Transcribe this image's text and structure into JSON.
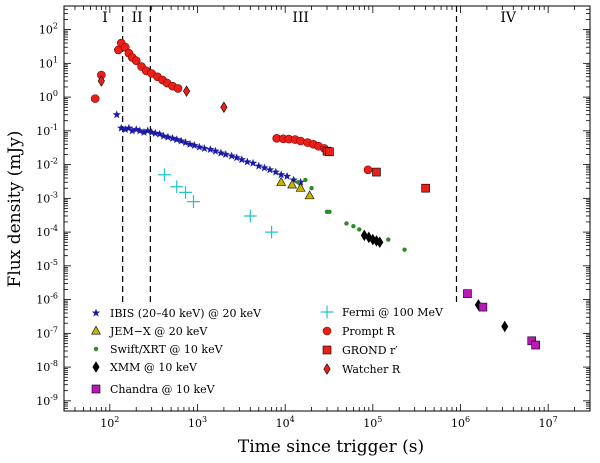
{
  "chart_data": {
    "type": "scatter",
    "xscale": "log",
    "yscale": "log",
    "xlabel": "Time since trigger (s)",
    "ylabel": "Flux density (mJy)",
    "xlim": [
      30,
      30000000
    ],
    "ylim": [
      5e-10,
      500
    ],
    "x_ticks": [
      {
        "value": 100,
        "base": "10",
        "exp": "2"
      },
      {
        "value": 1000,
        "base": "10",
        "exp": "3"
      },
      {
        "value": 10000,
        "base": "10",
        "exp": "4"
      },
      {
        "value": 100000,
        "base": "10",
        "exp": "5"
      },
      {
        "value": 1000000,
        "base": "10",
        "exp": "6"
      },
      {
        "value": 10000000,
        "base": "10",
        "exp": "7"
      }
    ],
    "y_ticks": [
      {
        "value": 100,
        "base": "10",
        "exp": "2"
      },
      {
        "value": 10,
        "base": "10",
        "exp": "1"
      },
      {
        "value": 1,
        "base": "10",
        "exp": "0"
      },
      {
        "value": 0.1,
        "base": "10",
        "exp": "-1"
      },
      {
        "value": 0.01,
        "base": "10",
        "exp": "-2"
      },
      {
        "value": 0.001,
        "base": "10",
        "exp": "-3"
      },
      {
        "value": 0.0001,
        "base": "10",
        "exp": "-4"
      },
      {
        "value": 1e-05,
        "base": "10",
        "exp": "-5"
      },
      {
        "value": 1e-06,
        "base": "10",
        "exp": "-6"
      },
      {
        "value": 1e-07,
        "base": "10",
        "exp": "-7"
      },
      {
        "value": 1e-08,
        "base": "10",
        "exp": "-8"
      },
      {
        "value": 1e-09,
        "base": "10",
        "exp": "-9"
      }
    ],
    "regions": [
      {
        "label": "I",
        "x": 88
      },
      {
        "label": "II",
        "x": 205
      },
      {
        "label": "III",
        "x": 15000
      },
      {
        "label": "IV",
        "x": 3500000
      }
    ],
    "region_boundaries": [
      140,
      290,
      900000
    ],
    "series": [
      {
        "name": "IBIS (20–40 keV) @ 20 keV",
        "marker": "star",
        "color": "#1a1aa6",
        "points": [
          {
            "x": 120,
            "y": 0.3
          },
          {
            "x": 135,
            "y": 0.12
          },
          {
            "x": 150,
            "y": 0.11
          },
          {
            "x": 165,
            "y": 0.12
          },
          {
            "x": 180,
            "y": 0.1
          },
          {
            "x": 200,
            "y": 0.11
          },
          {
            "x": 220,
            "y": 0.1
          },
          {
            "x": 245,
            "y": 0.09
          },
          {
            "x": 270,
            "y": 0.1
          },
          {
            "x": 300,
            "y": 0.09
          },
          {
            "x": 330,
            "y": 0.085
          },
          {
            "x": 370,
            "y": 0.08
          },
          {
            "x": 410,
            "y": 0.07
          },
          {
            "x": 460,
            "y": 0.065
          },
          {
            "x": 520,
            "y": 0.06
          },
          {
            "x": 580,
            "y": 0.055
          },
          {
            "x": 650,
            "y": 0.05
          },
          {
            "x": 730,
            "y": 0.045
          },
          {
            "x": 820,
            "y": 0.04
          },
          {
            "x": 920,
            "y": 0.037
          },
          {
            "x": 1050,
            "y": 0.033
          },
          {
            "x": 1200,
            "y": 0.03
          },
          {
            "x": 1400,
            "y": 0.028
          },
          {
            "x": 1600,
            "y": 0.025
          },
          {
            "x": 1850,
            "y": 0.022
          },
          {
            "x": 2100,
            "y": 0.02
          },
          {
            "x": 2450,
            "y": 0.018
          },
          {
            "x": 2800,
            "y": 0.016
          },
          {
            "x": 3200,
            "y": 0.014
          },
          {
            "x": 3700,
            "y": 0.012
          },
          {
            "x": 4300,
            "y": 0.011
          },
          {
            "x": 5000,
            "y": 0.009
          },
          {
            "x": 5800,
            "y": 0.008
          },
          {
            "x": 6700,
            "y": 0.007
          },
          {
            "x": 7800,
            "y": 0.006
          },
          {
            "x": 9000,
            "y": 0.005
          },
          {
            "x": 10500,
            "y": 0.0045
          },
          {
            "x": 12500,
            "y": 0.0035
          },
          {
            "x": 15000,
            "y": 0.003
          }
        ]
      },
      {
        "name": "JEM−X @ 20 keV",
        "marker": "triangle",
        "color": "#c8b400",
        "points": [
          {
            "x": 9000,
            "y": 0.003
          },
          {
            "x": 12000,
            "y": 0.0025
          },
          {
            "x": 15000,
            "y": 0.002
          },
          {
            "x": 19000,
            "y": 0.0012
          }
        ]
      },
      {
        "name": "Swift/XRT @ 10 keV",
        "marker": "dot",
        "color": "#2e8b22",
        "points": [
          {
            "x": 14000,
            "y": 0.003
          },
          {
            "x": 17000,
            "y": 0.0035
          },
          {
            "x": 20000,
            "y": 0.002
          },
          {
            "x": 30000,
            "y": 0.0004
          },
          {
            "x": 32000,
            "y": 0.0004
          },
          {
            "x": 50000,
            "y": 0.00018
          },
          {
            "x": 60000,
            "y": 0.00015
          },
          {
            "x": 70000,
            "y": 0.00012
          },
          {
            "x": 120000,
            "y": 5e-05
          },
          {
            "x": 150000,
            "y": 6e-05
          },
          {
            "x": 230000,
            "y": 3e-05
          }
        ]
      },
      {
        "name": "XMM @ 10 keV",
        "marker": "diamond",
        "color": "#000000",
        "points": [
          {
            "x": 80000,
            "y": 8e-05
          },
          {
            "x": 90000,
            "y": 7e-05
          },
          {
            "x": 100000,
            "y": 6e-05
          },
          {
            "x": 110000,
            "y": 5.5e-05
          },
          {
            "x": 120000,
            "y": 5e-05
          },
          {
            "x": 1600000,
            "y": 7e-07
          },
          {
            "x": 3200000,
            "y": 1.6e-07
          }
        ]
      },
      {
        "name": "Chandra @ 10 keV",
        "marker": "square",
        "color": "#b71ab7",
        "points": [
          {
            "x": 1200000,
            "y": 1.5e-06
          },
          {
            "x": 1800000,
            "y": 6e-07
          },
          {
            "x": 6500000,
            "y": 6e-08
          },
          {
            "x": 7200000,
            "y": 4.5e-08
          }
        ]
      },
      {
        "name": "Fermi @ 100 MeV",
        "marker": "plus",
        "color": "#22c4c4",
        "points": [
          {
            "x": 420,
            "y": 0.005
          },
          {
            "x": 580,
            "y": 0.0022
          },
          {
            "x": 730,
            "y": 0.0015
          },
          {
            "x": 900,
            "y": 0.0008
          },
          {
            "x": 4000,
            "y": 0.0003
          },
          {
            "x": 7000,
            "y": 0.0001
          }
        ]
      },
      {
        "name": "Prompt R",
        "marker": "circle",
        "color": "#e8201a",
        "points": [
          {
            "x": 68,
            "y": 0.9
          },
          {
            "x": 80,
            "y": 4.5
          },
          {
            "x": 125,
            "y": 25
          },
          {
            "x": 135,
            "y": 40
          },
          {
            "x": 150,
            "y": 30
          },
          {
            "x": 165,
            "y": 20
          },
          {
            "x": 180,
            "y": 15
          },
          {
            "x": 200,
            "y": 12
          },
          {
            "x": 230,
            "y": 8
          },
          {
            "x": 260,
            "y": 6
          },
          {
            "x": 300,
            "y": 5
          },
          {
            "x": 350,
            "y": 4
          },
          {
            "x": 400,
            "y": 3.2
          },
          {
            "x": 450,
            "y": 2.6
          },
          {
            "x": 520,
            "y": 2.1
          },
          {
            "x": 600,
            "y": 1.8
          },
          {
            "x": 8000,
            "y": 0.06
          },
          {
            "x": 9500,
            "y": 0.058
          },
          {
            "x": 11000,
            "y": 0.057
          },
          {
            "x": 13000,
            "y": 0.055
          },
          {
            "x": 15000,
            "y": 0.05
          },
          {
            "x": 18000,
            "y": 0.045
          },
          {
            "x": 21000,
            "y": 0.04
          },
          {
            "x": 24000,
            "y": 0.035
          },
          {
            "x": 28000,
            "y": 0.03
          },
          {
            "x": 88000,
            "y": 0.007
          }
        ]
      },
      {
        "name": "GROND r′",
        "marker": "square",
        "color": "#e8201a",
        "points": [
          {
            "x": 30000,
            "y": 0.025
          },
          {
            "x": 32000,
            "y": 0.024
          },
          {
            "x": 110000,
            "y": 0.006
          },
          {
            "x": 400000,
            "y": 0.002
          }
        ]
      },
      {
        "name": "Watcher R",
        "marker": "diamond",
        "color": "#e8201a",
        "points": [
          {
            "x": 80,
            "y": 3
          },
          {
            "x": 750,
            "y": 1.5
          },
          {
            "x": 2000,
            "y": 0.5
          }
        ]
      }
    ]
  },
  "legend": {
    "items": [
      {
        "label": "IBIS (20–40 keV) @ 20 keV",
        "color": "#1a1aa6"
      },
      {
        "label": "JEM−X @ 20 keV",
        "color": "#c8b400"
      },
      {
        "label": "Swift/XRT @ 10 keV",
        "color": "#2e8b22"
      },
      {
        "label": "XMM @ 10 keV",
        "color": "#000000"
      },
      {
        "label": "Chandra @ 10 keV",
        "color": "#b71ab7"
      },
      {
        "label": "Fermi @ 100 MeV",
        "color": "#22c4c4"
      },
      {
        "label": "Prompt R",
        "color": "#e8201a"
      },
      {
        "label": "GROND r′",
        "color": "#e8201a"
      },
      {
        "label": "Watcher R",
        "color": "#e8201a"
      }
    ]
  }
}
